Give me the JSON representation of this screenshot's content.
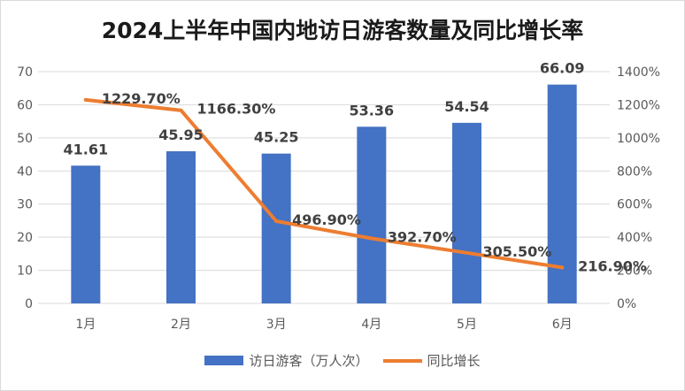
{
  "chart_data": {
    "type": "bar+line",
    "title": "2024上半年中国内地访日游客数量及同比增长率",
    "categories": [
      "1月",
      "2月",
      "3月",
      "4月",
      "5月",
      "6月"
    ],
    "series": [
      {
        "name": "访日游客（万人次）",
        "type": "bar",
        "axis": "left",
        "color": "#4472c4",
        "values": [
          41.61,
          45.95,
          45.25,
          53.36,
          54.54,
          66.09
        ],
        "labels": [
          "41.61",
          "45.95",
          "45.25",
          "53.36",
          "54.54",
          "66.09"
        ]
      },
      {
        "name": "同比增长",
        "type": "line",
        "axis": "right",
        "color": "#ed7d31",
        "values": [
          1229.7,
          1166.3,
          496.9,
          392.7,
          305.5,
          216.9
        ],
        "labels": [
          "1229.70%",
          "1166.30%",
          "496.90%",
          "392.70%",
          "305.50%",
          "216.90%"
        ]
      }
    ],
    "y_left": {
      "min": 0,
      "max": 70,
      "ticks": [
        "0",
        "10",
        "20",
        "30",
        "40",
        "50",
        "60",
        "70"
      ]
    },
    "y_right": {
      "min": 0,
      "max": 1400,
      "ticks": [
        "0%",
        "200%",
        "400%",
        "600%",
        "800%",
        "1000%",
        "1200%",
        "1400%"
      ]
    },
    "grid": true,
    "legend_position": "bottom"
  }
}
